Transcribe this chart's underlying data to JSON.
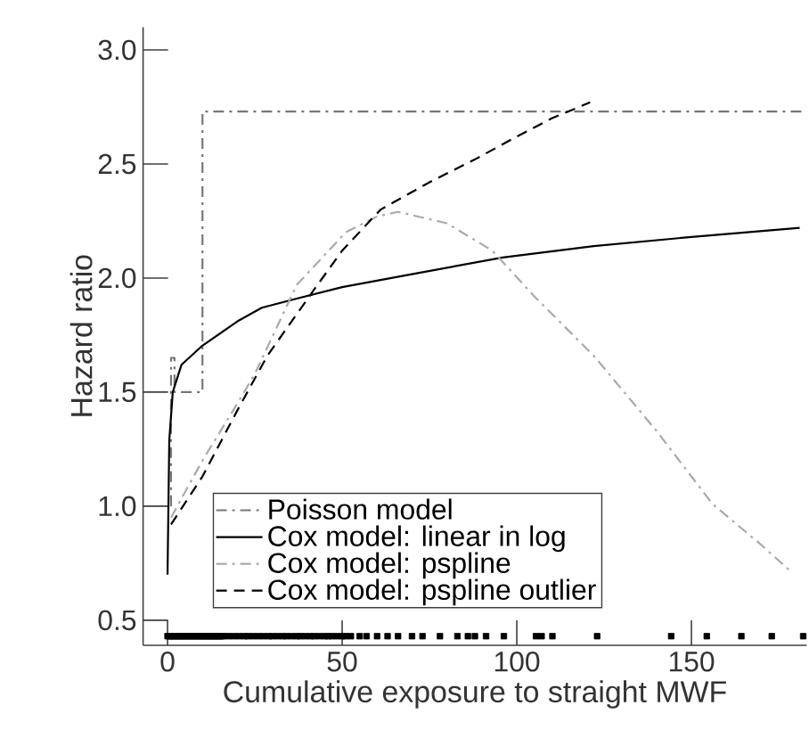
{
  "chart_data": {
    "type": "line",
    "xlabel": "Cumulative exposure to straight MWF",
    "ylabel": "Hazard ratio",
    "xlim": [
      -7,
      183
    ],
    "ylim": [
      0.39,
      3.1
    ],
    "xticks": [
      0,
      50,
      100,
      150
    ],
    "yticks": [
      0.5,
      {
        "value": 1,
        "label": "1.0"
      },
      1.5,
      {
        "value": 2,
        "label": "2.0"
      },
      2.5,
      {
        "value": 3,
        "label": "3.0"
      }
    ],
    "grid": false,
    "legend": "bottom left",
    "series": [
      {
        "name": "Poisson model",
        "color": "#777777",
        "line_style": "dashdot",
        "x": [
          1,
          1,
          2,
          2,
          10,
          10,
          183
        ],
        "values": [
          1.0,
          1.65,
          1.65,
          1.5,
          1.5,
          2.73,
          2.73
        ]
      },
      {
        "name": "Cox model: linear in log",
        "color": "#000000",
        "line_style": "solid",
        "x": [
          0,
          0.5,
          1.5,
          4,
          9.7,
          20,
          27,
          37,
          50,
          71,
          96,
          122,
          150,
          181
        ],
        "values": [
          0.7,
          1.29,
          1.5,
          1.62,
          1.7,
          1.81,
          1.87,
          1.91,
          1.96,
          2.02,
          2.09,
          2.14,
          2.18,
          2.22
        ]
      },
      {
        "name": "Cox model: pspline",
        "color": "#aaaaaa",
        "line_style": "dashdot",
        "x": [
          1,
          10,
          20,
          25,
          37,
          51,
          60,
          66,
          80,
          93,
          105,
          122,
          140,
          156,
          170,
          178
        ],
        "values": [
          0.95,
          1.2,
          1.45,
          1.58,
          1.97,
          2.2,
          2.27,
          2.29,
          2.24,
          2.12,
          1.92,
          1.66,
          1.33,
          1.01,
          0.83,
          0.72
        ]
      },
      {
        "name": "Cox model: pspline outlier",
        "color": "#000000",
        "line_style": "dashed",
        "x": [
          1,
          10,
          20,
          28.6,
          42,
          50,
          61,
          75,
          88,
          100,
          110,
          121
        ],
        "values": [
          0.92,
          1.13,
          1.42,
          1.66,
          1.95,
          2.12,
          2.3,
          2.42,
          2.52,
          2.62,
          2.7,
          2.77
        ]
      },
      {
        "type": "scatter",
        "marker": "square",
        "color": "#000000",
        "x": [
          0,
          0.5,
          1,
          1.5,
          2,
          2.5,
          3,
          3.5,
          4,
          4.5,
          5,
          5.5,
          6,
          6.5,
          7,
          7.5,
          8,
          8.5,
          9,
          9.5,
          10,
          10.5,
          11,
          11.5,
          12,
          12.5,
          13,
          13.5,
          14,
          14.5,
          15,
          15.5,
          16,
          17.5,
          19,
          20.5,
          22,
          23,
          24.5,
          26,
          27.5,
          29,
          30,
          31.5,
          33,
          34,
          35.5,
          37,
          38,
          39.5,
          41,
          42,
          43.5,
          45,
          46,
          47,
          48.5,
          50,
          51,
          52.5,
          55,
          57,
          60,
          63,
          66,
          70,
          73,
          78,
          83,
          86,
          88,
          91.2,
          96.3,
          105.5,
          107.1,
          110.2,
          123,
          144.2,
          154.4,
          164.3,
          173,
          182
        ],
        "values": [
          0.43,
          0.43,
          0.43,
          0.43,
          0.43,
          0.43,
          0.43,
          0.43,
          0.43,
          0.43,
          0.43,
          0.43,
          0.43,
          0.43,
          0.43,
          0.43,
          0.43,
          0.43,
          0.43,
          0.43,
          0.43,
          0.43,
          0.43,
          0.43,
          0.43,
          0.43,
          0.43,
          0.43,
          0.43,
          0.43,
          0.43,
          0.43,
          0.43,
          0.43,
          0.43,
          0.43,
          0.43,
          0.43,
          0.43,
          0.43,
          0.43,
          0.43,
          0.43,
          0.43,
          0.43,
          0.43,
          0.43,
          0.43,
          0.43,
          0.43,
          0.43,
          0.43,
          0.43,
          0.43,
          0.43,
          0.43,
          0.43,
          0.43,
          0.43,
          0.43,
          0.43,
          0.43,
          0.43,
          0.43,
          0.43,
          0.43,
          0.43,
          0.43,
          0.43,
          0.43,
          0.43,
          0.43,
          0.43,
          0.43,
          0.43,
          0.43,
          0.43,
          0.43,
          0.43,
          0.43,
          0.43,
          0.43
        ]
      }
    ]
  }
}
